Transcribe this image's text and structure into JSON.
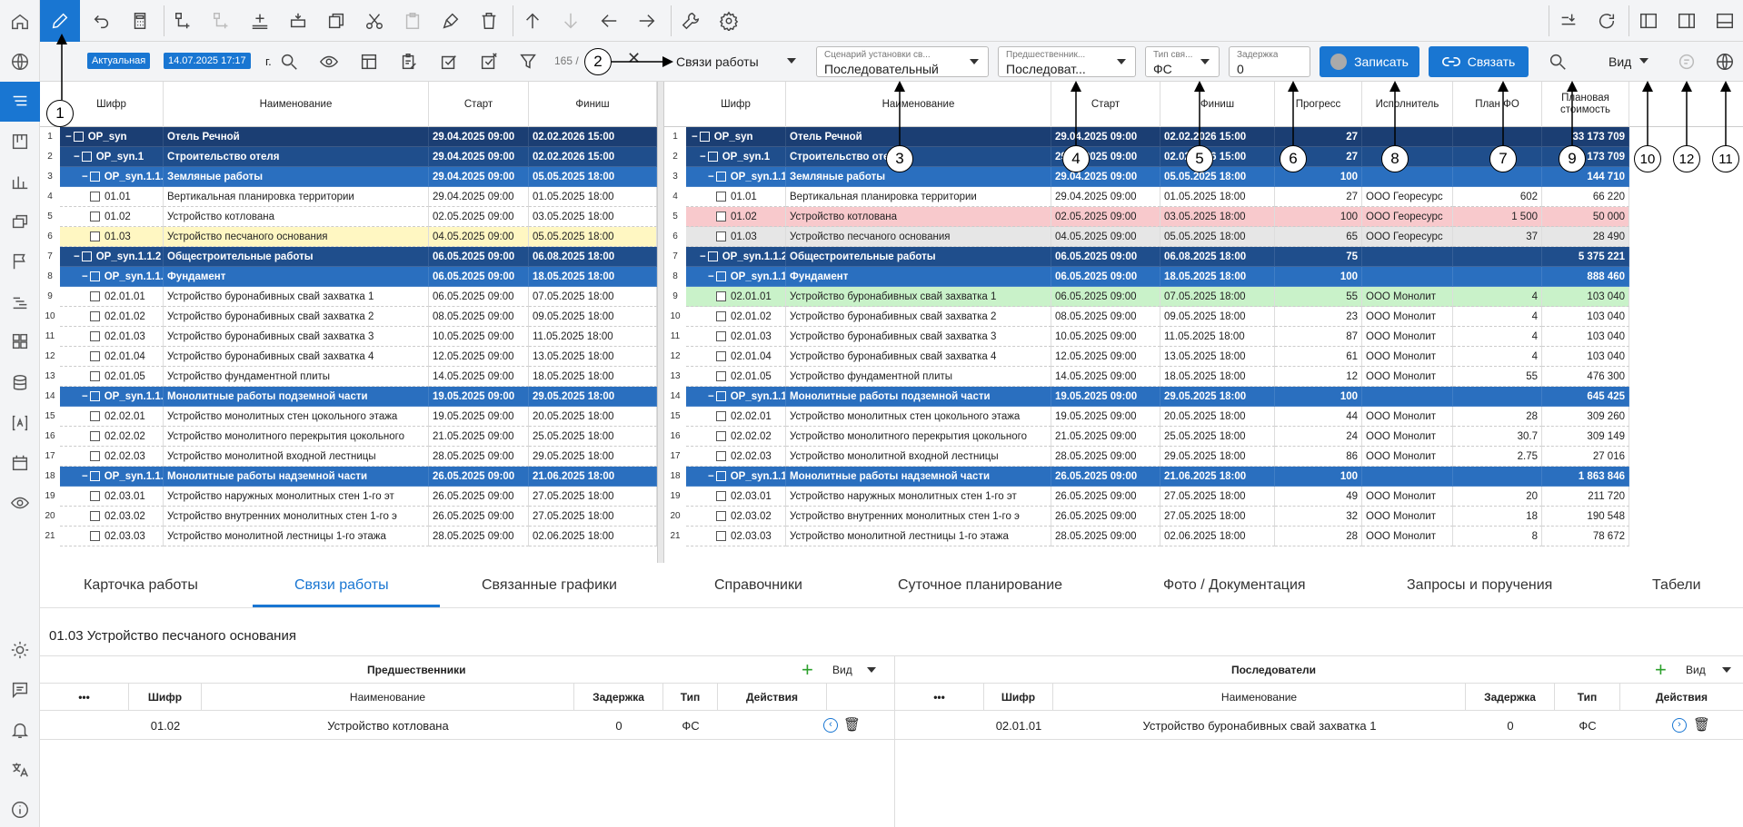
{
  "toolbar2": {
    "status_badge": "Актуальная",
    "date_badge": "14.07.2025 17:17",
    "date_suffix": "г.",
    "count": "165 /"
  },
  "dropdowns": {
    "view_mode": {
      "value": "Связи работы"
    },
    "scenario": {
      "label": "Сценарий установки св...",
      "value": "Последовательный"
    },
    "predecessor": {
      "label": "Предшественник...",
      "value": "Последоват..."
    },
    "link_type": {
      "label": "Тип свя...",
      "value": "ФС"
    },
    "delay": {
      "label": "Задержка",
      "value": "0"
    },
    "vid": {
      "value": "Вид"
    }
  },
  "buttons": {
    "record": "Записать",
    "link": "Связать"
  },
  "left_grid": {
    "headers": [
      "Шифр",
      "Наименование",
      "Старт",
      "Финиш"
    ],
    "rows": [
      {
        "n": "1",
        "lvl": 0,
        "code": "OP_syn",
        "name": "Отель Речной",
        "start": "29.04.2025 09:00",
        "finish": "02.02.2026 15:00"
      },
      {
        "n": "2",
        "lvl": 1,
        "code": "OP_syn.1",
        "name": "Строительство отеля",
        "start": "29.04.2025 09:00",
        "finish": "02.02.2026 15:00"
      },
      {
        "n": "3",
        "lvl": 2,
        "code": "OP_syn.1.1.1",
        "name": "Земляные работы",
        "start": "29.04.2025 09:00",
        "finish": "05.05.2025 18:00"
      },
      {
        "n": "4",
        "lvl": 3,
        "code": "01.01",
        "name": "Вертикальная планировка территории",
        "start": "29.04.2025 09:00",
        "finish": "01.05.2025 18:00"
      },
      {
        "n": "5",
        "lvl": 3,
        "code": "01.02",
        "name": "Устройство котлована",
        "start": "02.05.2025 09:00",
        "finish": "03.05.2025 18:00"
      },
      {
        "n": "6",
        "lvl": 3,
        "code": "01.03",
        "name": "Устройство песчаного основания",
        "start": "04.05.2025 09:00",
        "finish": "05.05.2025 18:00",
        "hl": "yellow"
      },
      {
        "n": "7",
        "lvl": 1,
        "code": "OP_syn.1.1.2",
        "name": "Общестроительные работы",
        "start": "06.05.2025 09:00",
        "finish": "06.08.2025 18:00"
      },
      {
        "n": "8",
        "lvl": 2,
        "code": "OP_syn.1.1.",
        "name": "Фундамент",
        "start": "06.05.2025 09:00",
        "finish": "18.05.2025 18:00"
      },
      {
        "n": "9",
        "lvl": 3,
        "code": "02.01.01",
        "name": "Устройство буронабивных свай захватка 1",
        "start": "06.05.2025 09:00",
        "finish": "07.05.2025 18:00"
      },
      {
        "n": "10",
        "lvl": 3,
        "code": "02.01.02",
        "name": "Устройство буронабивных свай захватка 2",
        "start": "08.05.2025 09:00",
        "finish": "09.05.2025 18:00"
      },
      {
        "n": "11",
        "lvl": 3,
        "code": "02.01.03",
        "name": "Устройство буронабивных свай захватка 3",
        "start": "10.05.2025 09:00",
        "finish": "11.05.2025 18:00"
      },
      {
        "n": "12",
        "lvl": 3,
        "code": "02.01.04",
        "name": "Устройство буронабивных свай захватка 4",
        "start": "12.05.2025 09:00",
        "finish": "13.05.2025 18:00"
      },
      {
        "n": "13",
        "lvl": 3,
        "code": "02.01.05",
        "name": "Устройство фундаментной плиты",
        "start": "14.05.2025 09:00",
        "finish": "18.05.2025 18:00"
      },
      {
        "n": "14",
        "lvl": 2,
        "code": "OP_syn.1.1.",
        "name": "Монолитные работы подземной части",
        "start": "19.05.2025 09:00",
        "finish": "29.05.2025 18:00"
      },
      {
        "n": "15",
        "lvl": 3,
        "code": "02.02.01",
        "name": "Устройство монолитных стен цокольного этажа",
        "start": "19.05.2025 09:00",
        "finish": "20.05.2025 18:00"
      },
      {
        "n": "16",
        "lvl": 3,
        "code": "02.02.02",
        "name": "Устройство монолитного перекрытия цокольного",
        "start": "21.05.2025 09:00",
        "finish": "25.05.2025 18:00"
      },
      {
        "n": "17",
        "lvl": 3,
        "code": "02.02.03",
        "name": "Устройство монолитной входной лестницы",
        "start": "28.05.2025 09:00",
        "finish": "29.05.2025 18:00"
      },
      {
        "n": "18",
        "lvl": 2,
        "code": "OP_syn.1.1.",
        "name": "Монолитные работы надземной части",
        "start": "26.05.2025 09:00",
        "finish": "21.06.2025 18:00"
      },
      {
        "n": "19",
        "lvl": 3,
        "code": "02.03.01",
        "name": "Устройство наружных монолитных стен 1-го эт",
        "start": "26.05.2025 09:00",
        "finish": "27.05.2025 18:00"
      },
      {
        "n": "20",
        "lvl": 3,
        "code": "02.03.02",
        "name": "Устройство внутренних монолитных стен 1-го э",
        "start": "26.05.2025 09:00",
        "finish": "27.05.2025 18:00"
      },
      {
        "n": "21",
        "lvl": 3,
        "code": "02.03.03",
        "name": "Устройство монолитной лестницы 1-го этажа",
        "start": "28.05.2025 09:00",
        "finish": "02.06.2025 18:00"
      }
    ]
  },
  "right_grid": {
    "headers": [
      "Шифр",
      "Наименование",
      "Старт",
      "Финиш",
      "Прогресс",
      "Исполнитель",
      "План ФО",
      "Плановая стоимость"
    ],
    "rows": [
      {
        "n": "1",
        "lvl": 0,
        "code": "OP_syn",
        "name": "Отель Речной",
        "start": "29.04.2025 09:00",
        "finish": "02.02.2026 15:00",
        "prog": "27",
        "exec": "",
        "plan": "",
        "cost": "33 173 709"
      },
      {
        "n": "2",
        "lvl": 1,
        "code": "OP_syn.1",
        "name": "Строительство отеля",
        "start": "29.04.2025 09:00",
        "finish": "02.02.2026 15:00",
        "prog": "27",
        "exec": "",
        "plan": "",
        "cost": "33 173 709"
      },
      {
        "n": "3",
        "lvl": 2,
        "code": "OP_syn.1.1.1",
        "name": "Земляные работы",
        "start": "29.04.2025 09:00",
        "finish": "05.05.2025 18:00",
        "prog": "100",
        "exec": "",
        "plan": "",
        "cost": "144 710"
      },
      {
        "n": "4",
        "lvl": 3,
        "code": "01.01",
        "name": "Вертикальная планировка территории",
        "start": "29.04.2025 09:00",
        "finish": "01.05.2025 18:00",
        "prog": "27",
        "exec": "ООО Георесурс",
        "plan": "602",
        "cost": "66 220"
      },
      {
        "n": "5",
        "lvl": 3,
        "code": "01.02",
        "name": "Устройство котлована",
        "start": "02.05.2025 09:00",
        "finish": "03.05.2025 18:00",
        "prog": "100",
        "exec": "ООО Георесурс",
        "plan": "1 500",
        "cost": "50 000",
        "hl": "red"
      },
      {
        "n": "6",
        "lvl": 3,
        "code": "01.03",
        "name": "Устройство песчаного основания",
        "start": "04.05.2025 09:00",
        "finish": "05.05.2025 18:00",
        "prog": "65",
        "exec": "ООО Георесурс",
        "plan": "37",
        "cost": "28 490",
        "hl": "grey"
      },
      {
        "n": "7",
        "lvl": 1,
        "code": "OP_syn.1.1.2",
        "name": "Общестроительные работы",
        "start": "06.05.2025 09:00",
        "finish": "06.08.2025 18:00",
        "prog": "75",
        "exec": "",
        "plan": "",
        "cost": "5 375 221"
      },
      {
        "n": "8",
        "lvl": 2,
        "code": "OP_syn.1.1.",
        "name": "Фундамент",
        "start": "06.05.2025 09:00",
        "finish": "18.05.2025 18:00",
        "prog": "100",
        "exec": "",
        "plan": "",
        "cost": "888 460"
      },
      {
        "n": "9",
        "lvl": 3,
        "code": "02.01.01",
        "name": "Устройство буронабивных свай захватка 1",
        "start": "06.05.2025 09:00",
        "finish": "07.05.2025 18:00",
        "prog": "55",
        "exec": "ООО Монолит",
        "plan": "4",
        "cost": "103 040",
        "hl": "green"
      },
      {
        "n": "10",
        "lvl": 3,
        "code": "02.01.02",
        "name": "Устройство буронабивных свай захватка 2",
        "start": "08.05.2025 09:00",
        "finish": "09.05.2025 18:00",
        "prog": "23",
        "exec": "ООО Монолит",
        "plan": "4",
        "cost": "103 040"
      },
      {
        "n": "11",
        "lvl": 3,
        "code": "02.01.03",
        "name": "Устройство буронабивных свай захватка 3",
        "start": "10.05.2025 09:00",
        "finish": "11.05.2025 18:00",
        "prog": "87",
        "exec": "ООО Монолит",
        "plan": "4",
        "cost": "103 040"
      },
      {
        "n": "12",
        "lvl": 3,
        "code": "02.01.04",
        "name": "Устройство буронабивных свай захватка 4",
        "start": "12.05.2025 09:00",
        "finish": "13.05.2025 18:00",
        "prog": "61",
        "exec": "ООО Монолит",
        "plan": "4",
        "cost": "103 040"
      },
      {
        "n": "13",
        "lvl": 3,
        "code": "02.01.05",
        "name": "Устройство фундаментной плиты",
        "start": "14.05.2025 09:00",
        "finish": "18.05.2025 18:00",
        "prog": "12",
        "exec": "ООО Монолит",
        "plan": "55",
        "cost": "476 300"
      },
      {
        "n": "14",
        "lvl": 2,
        "code": "OP_syn.1.1.",
        "name": "Монолитные работы подземной части",
        "start": "19.05.2025 09:00",
        "finish": "29.05.2025 18:00",
        "prog": "100",
        "exec": "",
        "plan": "",
        "cost": "645 425"
      },
      {
        "n": "15",
        "lvl": 3,
        "code": "02.02.01",
        "name": "Устройство монолитных стен цокольного этажа",
        "start": "19.05.2025 09:00",
        "finish": "20.05.2025 18:00",
        "prog": "44",
        "exec": "ООО Монолит",
        "plan": "28",
        "cost": "309 260"
      },
      {
        "n": "16",
        "lvl": 3,
        "code": "02.02.02",
        "name": "Устройство монолитного перекрытия цокольного",
        "start": "21.05.2025 09:00",
        "finish": "25.05.2025 18:00",
        "prog": "24",
        "exec": "ООО Монолит",
        "plan": "30.7",
        "cost": "309 149"
      },
      {
        "n": "17",
        "lvl": 3,
        "code": "02.02.03",
        "name": "Устройство монолитной входной лестницы",
        "start": "28.05.2025 09:00",
        "finish": "29.05.2025 18:00",
        "prog": "86",
        "exec": "ООО Монолит",
        "plan": "2.75",
        "cost": "27 016"
      },
      {
        "n": "18",
        "lvl": 2,
        "code": "OP_syn.1.1.",
        "name": "Монолитные работы надземной части",
        "start": "26.05.2025 09:00",
        "finish": "21.06.2025 18:00",
        "prog": "100",
        "exec": "",
        "plan": "",
        "cost": "1 863 846"
      },
      {
        "n": "19",
        "lvl": 3,
        "code": "02.03.01",
        "name": "Устройство наружных монолитных стен 1-го эт",
        "start": "26.05.2025 09:00",
        "finish": "27.05.2025 18:00",
        "prog": "49",
        "exec": "ООО Монолит",
        "plan": "20",
        "cost": "211 720"
      },
      {
        "n": "20",
        "lvl": 3,
        "code": "02.03.02",
        "name": "Устройство внутренних монолитных стен 1-го э",
        "start": "26.05.2025 09:00",
        "finish": "27.05.2025 18:00",
        "prog": "32",
        "exec": "ООО Монолит",
        "plan": "18",
        "cost": "190 548"
      },
      {
        "n": "21",
        "lvl": 3,
        "code": "02.03.03",
        "name": "Устройство монолитной лестницы 1-го этажа",
        "start": "28.05.2025 09:00",
        "finish": "02.06.2025 18:00",
        "prog": "28",
        "exec": "ООО Монолит",
        "plan": "8",
        "cost": "78 672"
      }
    ]
  },
  "tabs": [
    "Карточка работы",
    "Связи работы",
    "Связанные графики",
    "Справочники",
    "Суточное планирование",
    "Фото / Документация",
    "Запросы и поручения",
    "Табели"
  ],
  "selected_work": "01.03 Устройство песчаного основания",
  "predecessors": {
    "title": "Предшественники",
    "vid": "Вид",
    "headers": [
      "•••",
      "Шифр",
      "Наименование",
      "Задержка",
      "Тип",
      "Действия"
    ],
    "rows": [
      {
        "code": "01.02",
        "name": "Устройство котлована",
        "delay": "0",
        "type": "ФС"
      }
    ]
  },
  "successors": {
    "title": "Последователи",
    "vid": "Вид",
    "headers": [
      "•••",
      "Шифр",
      "Наименование",
      "Задержка",
      "Тип",
      "Действия"
    ],
    "rows": [
      {
        "code": "02.01.01",
        "name": "Устройство буронабивных свай захватка 1",
        "delay": "0",
        "type": "ФС"
      }
    ]
  },
  "callouts": [
    "1",
    "2",
    "3",
    "4",
    "5",
    "6",
    "7",
    "8",
    "9",
    "10",
    "11",
    "12"
  ],
  "colors": {
    "accent": "#1976d2",
    "group_dark": "#1b3e73",
    "group_mid": "#1f4e8c",
    "group_light": "#2a6fbf",
    "hl_yellow": "#fff7c2",
    "hl_red": "#f8c9cc",
    "hl_green": "#c9f2c9",
    "hl_grey": "#e6e6e6"
  }
}
